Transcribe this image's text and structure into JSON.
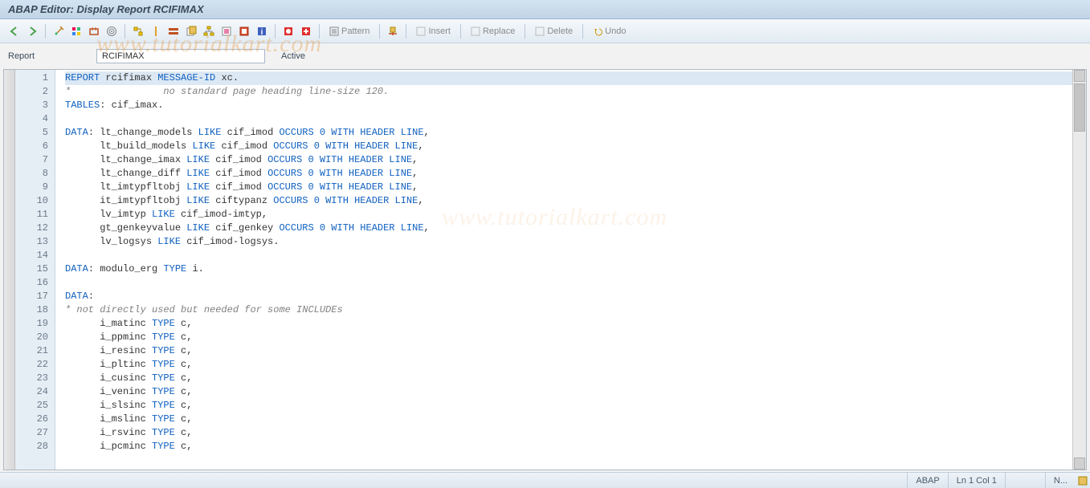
{
  "title": "ABAP Editor: Display Report RCIFIMAX",
  "toolbar": {
    "pattern": "Pattern",
    "insert": "Insert",
    "replace": "Replace",
    "delete": "Delete",
    "undo": "Undo"
  },
  "info": {
    "label": "Report",
    "name": "RCIFIMAX",
    "status": "Active"
  },
  "watermark": "www.tutorialkart.com",
  "status": {
    "lang": "ABAP",
    "pos": "Ln  1 Col  1",
    "mode": "N..."
  },
  "colors": {
    "keyword": "#1060c0",
    "comment": "#808080",
    "text": "#333333",
    "highlight": "#dce8f4",
    "gutter_bg": "#e6eef5",
    "title_grad_top": "#d4e3f0",
    "title_grad_bot": "#c0d5e8"
  },
  "code": [
    {
      "n": 1,
      "hl": true,
      "tokens": [
        [
          "kw",
          "REPORT"
        ],
        [
          "",
          " rcifimax "
        ],
        [
          "kw",
          "MESSAGE-ID"
        ],
        [
          "",
          " xc."
        ]
      ]
    },
    {
      "n": 2,
      "tokens": [
        [
          "cmt",
          "*                no standard page heading line-size 120."
        ]
      ]
    },
    {
      "n": 3,
      "tokens": [
        [
          "kw",
          "TABLES"
        ],
        [
          "",
          ": cif_imax."
        ]
      ]
    },
    {
      "n": 4,
      "tokens": [
        [
          "",
          ""
        ]
      ]
    },
    {
      "n": 5,
      "tokens": [
        [
          "kw",
          "DATA"
        ],
        [
          "",
          ": lt_change_models "
        ],
        [
          "kw",
          "LIKE"
        ],
        [
          "",
          " cif_imod "
        ],
        [
          "kw",
          "OCCURS"
        ],
        [
          "",
          " "
        ],
        [
          "num",
          "0"
        ],
        [
          "",
          " "
        ],
        [
          "kw",
          "WITH HEADER LINE"
        ],
        [
          "",
          ","
        ]
      ]
    },
    {
      "n": 6,
      "tokens": [
        [
          "",
          "      lt_build_models "
        ],
        [
          "kw",
          "LIKE"
        ],
        [
          "",
          " cif_imod "
        ],
        [
          "kw",
          "OCCURS"
        ],
        [
          "",
          " "
        ],
        [
          "num",
          "0"
        ],
        [
          "",
          " "
        ],
        [
          "kw",
          "WITH HEADER LINE"
        ],
        [
          "",
          ","
        ]
      ]
    },
    {
      "n": 7,
      "tokens": [
        [
          "",
          "      lt_change_imax "
        ],
        [
          "kw",
          "LIKE"
        ],
        [
          "",
          " cif_imod "
        ],
        [
          "kw",
          "OCCURS"
        ],
        [
          "",
          " "
        ],
        [
          "num",
          "0"
        ],
        [
          "",
          " "
        ],
        [
          "kw",
          "WITH HEADER LINE"
        ],
        [
          "",
          ","
        ]
      ]
    },
    {
      "n": 8,
      "tokens": [
        [
          "",
          "      lt_change_diff "
        ],
        [
          "kw",
          "LIKE"
        ],
        [
          "",
          " cif_imod "
        ],
        [
          "kw",
          "OCCURS"
        ],
        [
          "",
          " "
        ],
        [
          "num",
          "0"
        ],
        [
          "",
          " "
        ],
        [
          "kw",
          "WITH HEADER LINE"
        ],
        [
          "",
          ","
        ]
      ]
    },
    {
      "n": 9,
      "tokens": [
        [
          "",
          "      lt_imtypfltobj "
        ],
        [
          "kw",
          "LIKE"
        ],
        [
          "",
          " cif_imod "
        ],
        [
          "kw",
          "OCCURS"
        ],
        [
          "",
          " "
        ],
        [
          "num",
          "0"
        ],
        [
          "",
          " "
        ],
        [
          "kw",
          "WITH HEADER LINE"
        ],
        [
          "",
          ","
        ]
      ]
    },
    {
      "n": 10,
      "tokens": [
        [
          "",
          "      it_imtypfltobj "
        ],
        [
          "kw",
          "LIKE"
        ],
        [
          "",
          " ciftypanz "
        ],
        [
          "kw",
          "OCCURS"
        ],
        [
          "",
          " "
        ],
        [
          "num",
          "0"
        ],
        [
          "",
          " "
        ],
        [
          "kw",
          "WITH HEADER LINE"
        ],
        [
          "",
          ","
        ]
      ]
    },
    {
      "n": 11,
      "tokens": [
        [
          "",
          "      lv_imtyp "
        ],
        [
          "kw",
          "LIKE"
        ],
        [
          "",
          " cif_imod-imtyp,"
        ]
      ]
    },
    {
      "n": 12,
      "tokens": [
        [
          "",
          "      gt_genkeyvalue "
        ],
        [
          "kw",
          "LIKE"
        ],
        [
          "",
          " cif_genkey "
        ],
        [
          "kw",
          "OCCURS"
        ],
        [
          "",
          " "
        ],
        [
          "num",
          "0"
        ],
        [
          "",
          " "
        ],
        [
          "kw",
          "WITH HEADER LINE"
        ],
        [
          "",
          ","
        ]
      ]
    },
    {
      "n": 13,
      "tokens": [
        [
          "",
          "      lv_logsys "
        ],
        [
          "kw",
          "LIKE"
        ],
        [
          "",
          " cif_imod-logsys."
        ]
      ]
    },
    {
      "n": 14,
      "tokens": [
        [
          "",
          ""
        ]
      ]
    },
    {
      "n": 15,
      "tokens": [
        [
          "kw",
          "DATA"
        ],
        [
          "",
          ": modulo_erg "
        ],
        [
          "kw",
          "TYPE"
        ],
        [
          "",
          " i."
        ]
      ]
    },
    {
      "n": 16,
      "tokens": [
        [
          "",
          ""
        ]
      ]
    },
    {
      "n": 17,
      "tokens": [
        [
          "kw",
          "DATA"
        ],
        [
          "",
          ":"
        ]
      ]
    },
    {
      "n": 18,
      "tokens": [
        [
          "cmt",
          "* not directly used but needed for some INCLUDEs"
        ]
      ]
    },
    {
      "n": 19,
      "tokens": [
        [
          "",
          "      i_matinc "
        ],
        [
          "kw",
          "TYPE"
        ],
        [
          "",
          " c,"
        ]
      ]
    },
    {
      "n": 20,
      "tokens": [
        [
          "",
          "      i_ppminc "
        ],
        [
          "kw",
          "TYPE"
        ],
        [
          "",
          " c,"
        ]
      ]
    },
    {
      "n": 21,
      "tokens": [
        [
          "",
          "      i_resinc "
        ],
        [
          "kw",
          "TYPE"
        ],
        [
          "",
          " c,"
        ]
      ]
    },
    {
      "n": 22,
      "tokens": [
        [
          "",
          "      i_pltinc "
        ],
        [
          "kw",
          "TYPE"
        ],
        [
          "",
          " c,"
        ]
      ]
    },
    {
      "n": 23,
      "tokens": [
        [
          "",
          "      i_cusinc "
        ],
        [
          "kw",
          "TYPE"
        ],
        [
          "",
          " c,"
        ]
      ]
    },
    {
      "n": 24,
      "tokens": [
        [
          "",
          "      i_veninc "
        ],
        [
          "kw",
          "TYPE"
        ],
        [
          "",
          " c,"
        ]
      ]
    },
    {
      "n": 25,
      "tokens": [
        [
          "",
          "      i_slsinc "
        ],
        [
          "kw",
          "TYPE"
        ],
        [
          "",
          " c,"
        ]
      ]
    },
    {
      "n": 26,
      "tokens": [
        [
          "",
          "      i_mslinc "
        ],
        [
          "kw",
          "TYPE"
        ],
        [
          "",
          " c,"
        ]
      ]
    },
    {
      "n": 27,
      "tokens": [
        [
          "",
          "      i_rsvinc "
        ],
        [
          "kw",
          "TYPE"
        ],
        [
          "",
          " c,"
        ]
      ]
    },
    {
      "n": 28,
      "tokens": [
        [
          "",
          "      i_pcminc "
        ],
        [
          "kw",
          "TYPE"
        ],
        [
          "",
          " c,"
        ]
      ]
    }
  ]
}
